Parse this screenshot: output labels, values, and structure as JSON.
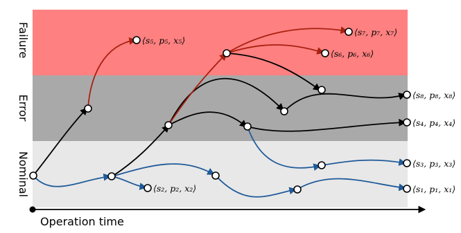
{
  "bands": {
    "failure": {
      "label": "Failure",
      "color": "#ff8080"
    },
    "error": {
      "label": "Error",
      "color": "#a9a9a9"
    },
    "nominal": {
      "label": "Nominal",
      "color": "#e8e8e8"
    }
  },
  "axis": {
    "label": "Operation time"
  },
  "state_labels": {
    "s1": "⟨s₁, p₁, x₁⟩",
    "s2": "⟨s₂, p₂, x₂⟩",
    "s3": "⟨s₃, p₃, x₃⟩",
    "s4": "⟨s₄, p₄, x₄⟩",
    "s5": "⟨s₅, p₅, x₅⟩",
    "s6": "⟨s₆, p₆, x₆⟩",
    "s7": "⟨s₇, p₇, x₇⟩",
    "s8": "⟨s₈, p₈, x₈⟩"
  },
  "edge_colors": {
    "black": "#000000",
    "blue": "#1f5a99",
    "red": "#a82010"
  }
}
